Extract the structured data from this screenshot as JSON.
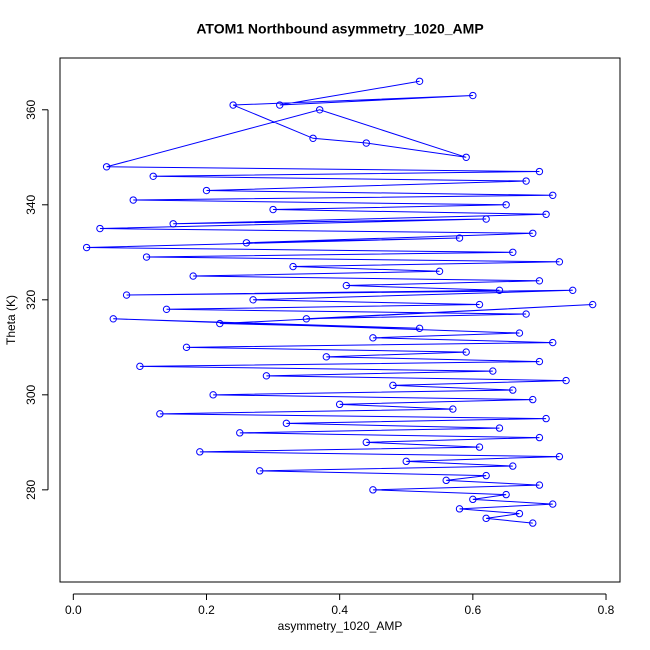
{
  "chart_data": {
    "type": "line",
    "title": "ATOM1 Northbound asymmetry_1020_AMP",
    "x_label": "asymmetry_1020_AMP",
    "y_label": "Theta (K)",
    "color": "#0000ff",
    "marker": "o",
    "x": [
      0.52,
      0.31,
      0.6,
      0.24,
      0.36,
      0.44,
      0.59,
      0.37,
      0.05,
      0.7,
      0.12,
      0.68,
      0.2,
      0.72,
      0.09,
      0.65,
      0.3,
      0.71,
      0.15,
      0.62,
      0.04,
      0.69,
      0.26,
      0.58,
      0.02,
      0.66,
      0.11,
      0.73,
      0.33,
      0.55,
      0.18,
      0.7,
      0.41,
      0.64,
      0.08,
      0.75,
      0.27,
      0.61,
      0.14,
      0.68,
      0.35,
      0.78,
      0.22,
      0.52,
      0.06,
      0.67,
      0.45,
      0.72,
      0.17,
      0.59,
      0.38,
      0.7,
      0.1,
      0.63,
      0.29,
      0.74,
      0.48,
      0.66,
      0.21,
      0.69,
      0.4,
      0.57,
      0.13,
      0.71,
      0.32,
      0.64,
      0.25,
      0.7,
      0.44,
      0.61,
      0.19,
      0.73,
      0.5,
      0.66,
      0.28,
      0.62,
      0.56,
      0.7,
      0.45,
      0.65,
      0.6,
      0.72,
      0.58,
      0.67,
      0.62,
      0.69
    ],
    "series": [
      {
        "values": [
          366,
          361,
          363,
          361,
          354,
          353,
          350,
          360,
          348,
          347,
          346,
          345,
          343,
          342,
          341,
          340,
          339,
          338,
          336,
          337,
          335,
          334,
          332,
          333,
          331,
          330,
          329,
          328,
          327,
          326,
          325,
          324,
          323,
          322,
          321,
          322,
          320,
          319,
          318,
          317,
          316,
          319,
          315,
          314,
          316,
          313,
          312,
          311,
          310,
          309,
          308,
          307,
          306,
          305,
          304,
          303,
          302,
          301,
          300,
          299,
          298,
          297,
          296,
          295,
          294,
          293,
          292,
          291,
          290,
          289,
          288,
          287,
          286,
          285,
          284,
          283,
          282,
          281,
          280,
          279,
          278,
          277,
          276,
          275,
          274,
          273
        ]
      }
    ],
    "xlim": [
      -0.02,
      0.821
    ],
    "ylim": [
      260.6,
      370.9
    ],
    "xticks": [
      {
        "value": 0,
        "label": "0.0"
      },
      0.2,
      0.4,
      0.6,
      0.8
    ],
    "yticks": [
      280,
      300,
      320,
      340,
      360
    ]
  }
}
